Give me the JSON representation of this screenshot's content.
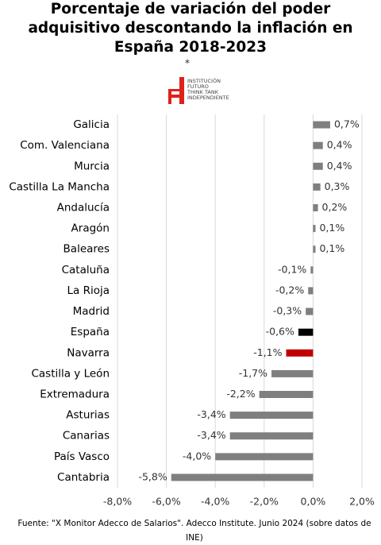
{
  "chart_data": {
    "type": "hbar",
    "title": "Porcentaje de variación del poder adquisitivo descontando la inflación en España 2018-2023",
    "title_mark": "*",
    "categories": [
      "Galicia",
      "Com. Valenciana",
      "Murcia",
      "Castilla La Mancha",
      "Andalucía",
      "Aragón",
      "Baleares",
      "Cataluña",
      "La Rioja",
      "Madrid",
      "España",
      "Navarra",
      "Castilla y León",
      "Extremadura",
      "Asturias",
      "Canarias",
      "País Vasco",
      "Cantabria"
    ],
    "values": [
      0.7,
      0.4,
      0.4,
      0.3,
      0.2,
      0.1,
      0.1,
      -0.1,
      -0.2,
      -0.3,
      -0.6,
      -1.1,
      -1.7,
      -2.2,
      -3.4,
      -3.4,
      -4.0,
      -5.8
    ],
    "value_labels": [
      "0,7%",
      "0,4%",
      "0,4%",
      "0,3%",
      "0,2%",
      "0,1%",
      "0,1%",
      "-0,1%",
      "-0,2%",
      "-0,3%",
      "-0,6%",
      "-1,1%",
      "-1,7%",
      "-2,2%",
      "-3,4%",
      "-3,4%",
      "-4,0%",
      "-5,8%"
    ],
    "colors": [
      "#7f7f7f",
      "#7f7f7f",
      "#7f7f7f",
      "#7f7f7f",
      "#7f7f7f",
      "#7f7f7f",
      "#7f7f7f",
      "#7f7f7f",
      "#7f7f7f",
      "#7f7f7f",
      "#000000",
      "#c00000",
      "#7f7f7f",
      "#7f7f7f",
      "#7f7f7f",
      "#7f7f7f",
      "#7f7f7f",
      "#7f7f7f"
    ],
    "xlim": [
      -8,
      2
    ],
    "xticks": [
      {
        "value": -8,
        "label": "-8,0%"
      },
      {
        "value": -6,
        "label": "-6,0%"
      },
      {
        "value": -4,
        "label": "-4,0%"
      },
      {
        "value": -2,
        "label": "-2,0%"
      },
      {
        "value": 0,
        "label": "0,0%"
      },
      {
        "value": 2,
        "label": "2,0%"
      }
    ],
    "grid": true,
    "source": "Fuente: \"X Monitor Adecco de Salarios\". Adecco Institute. Junio 2024 (sobre datos de INE)"
  },
  "logo": [
    "INSTITUCIÓN",
    "FUTURO",
    "THINK TANK",
    "INDEPENDIENTE"
  ]
}
